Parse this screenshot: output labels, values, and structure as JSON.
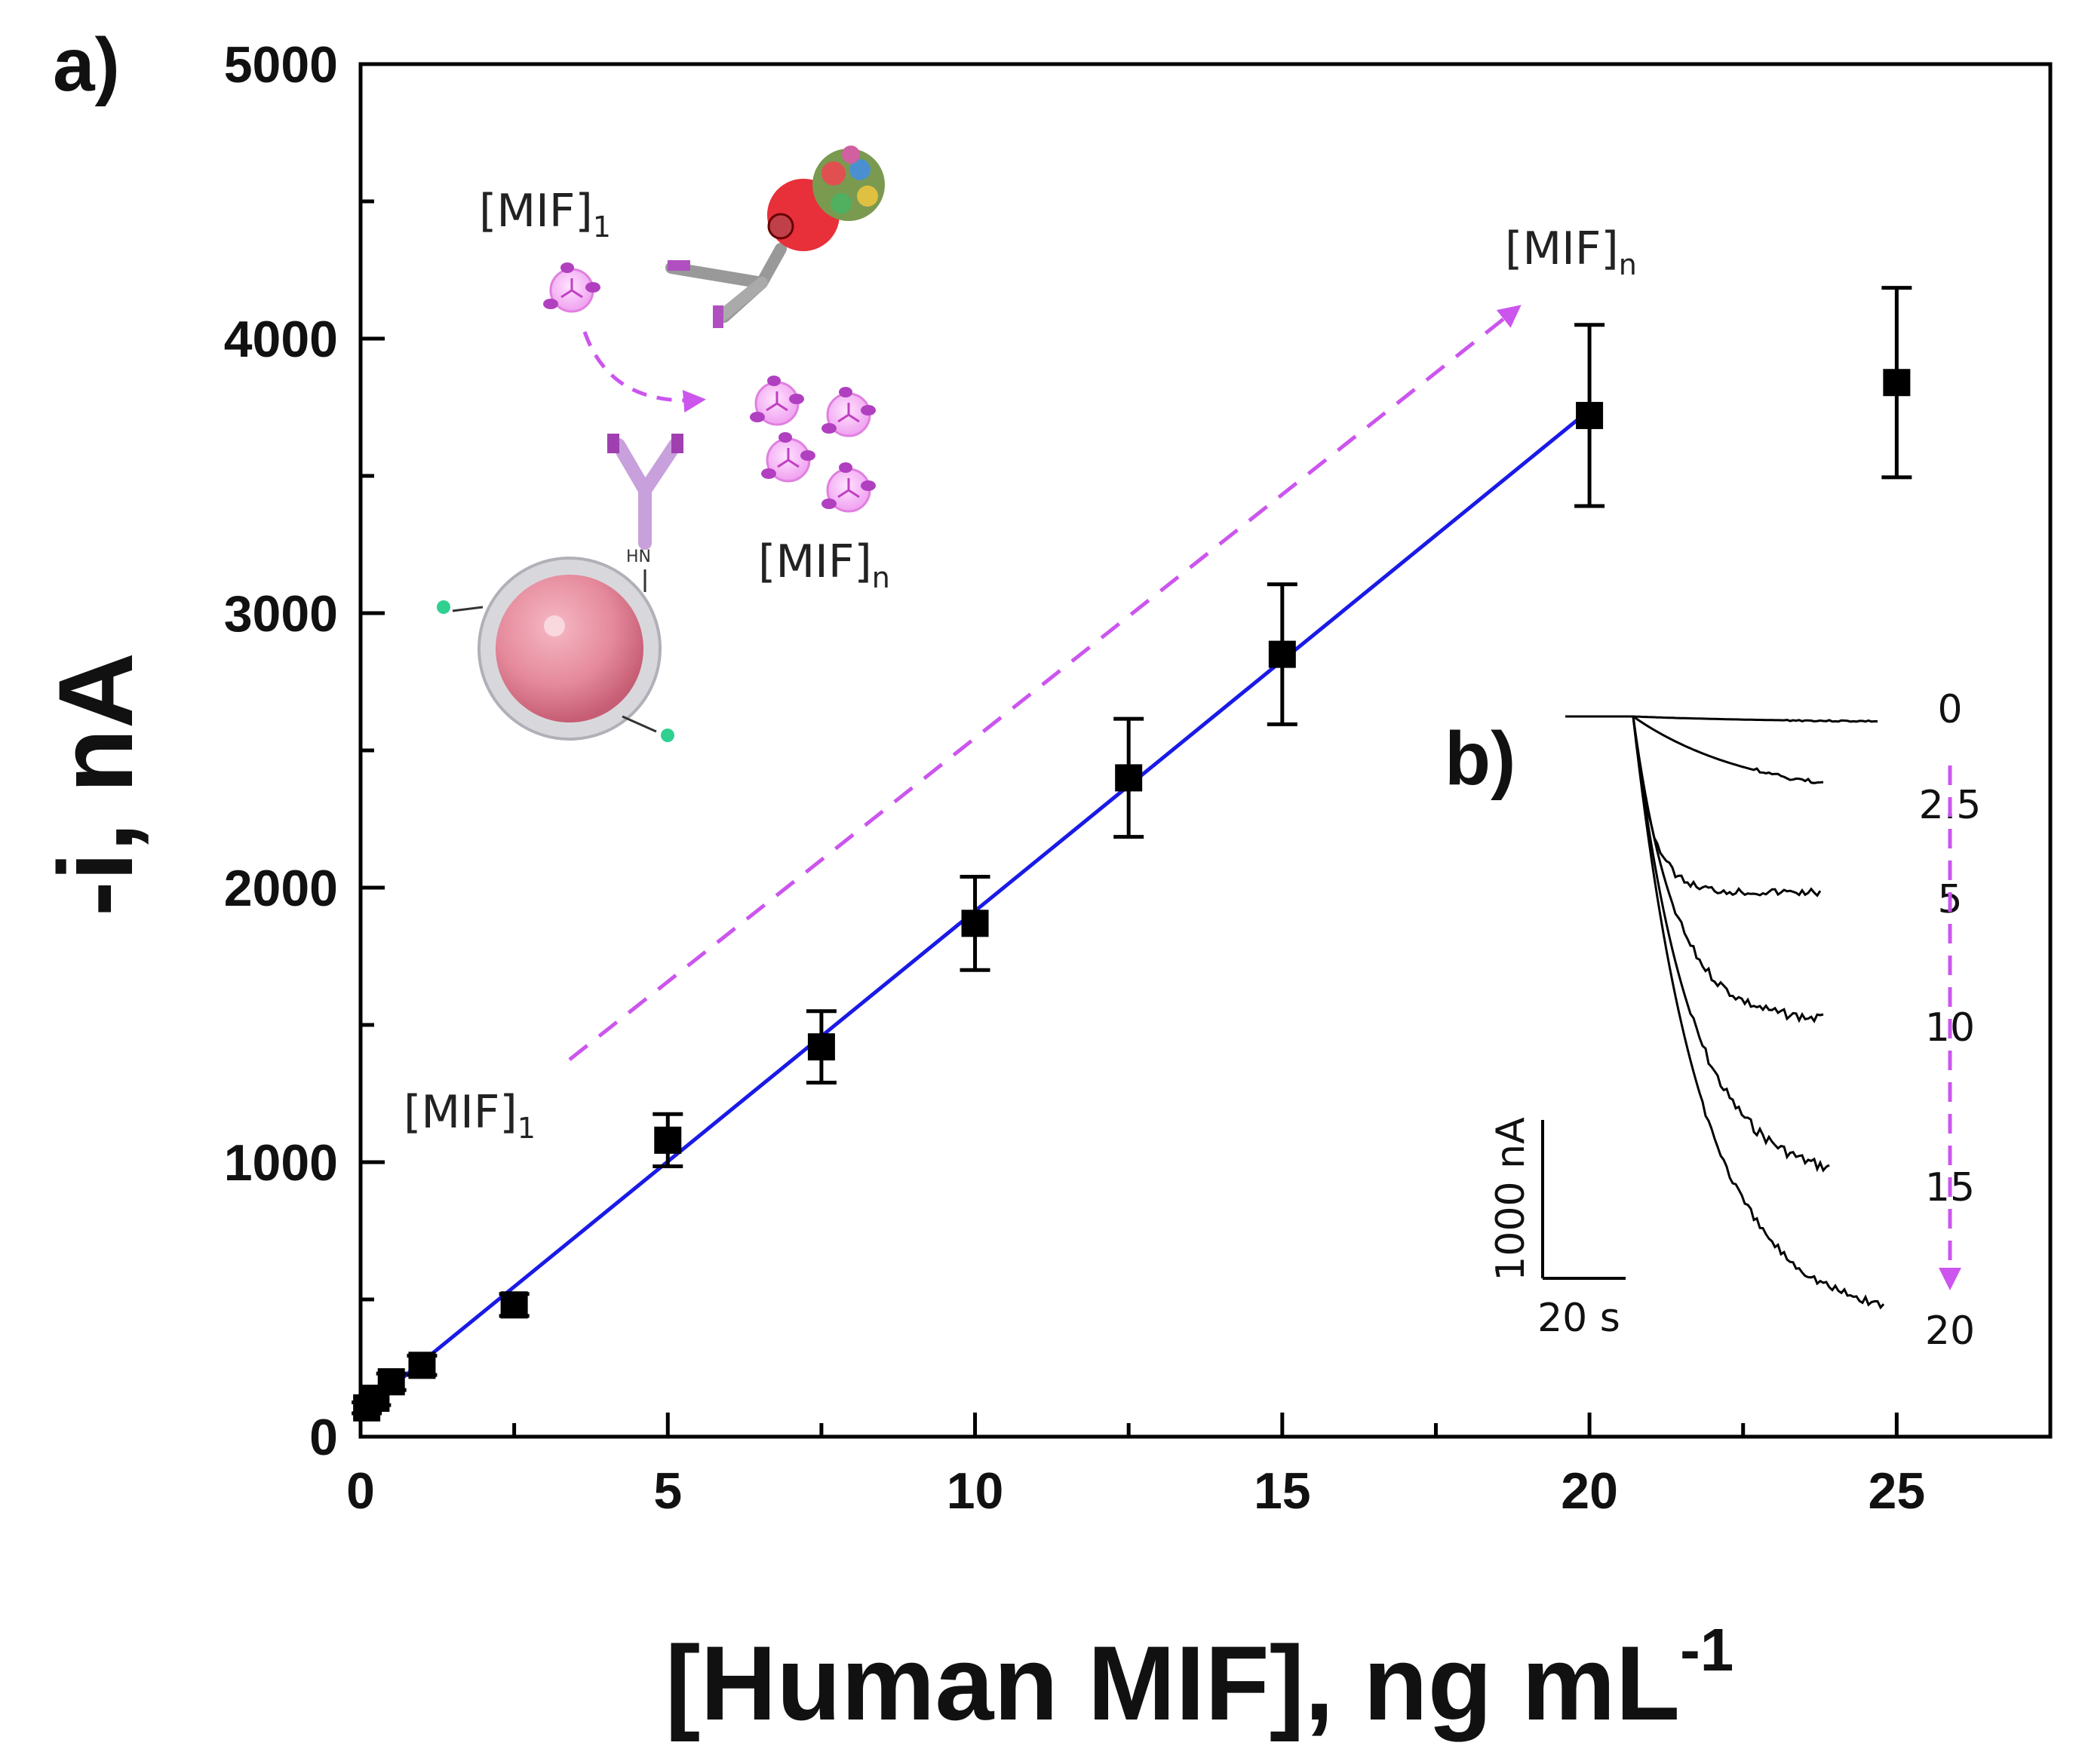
{
  "chart_data": [
    {
      "panel": "a)",
      "type": "scatter",
      "xlabel": "[Human MIF], ng mL",
      "xlabel_sup": "-1",
      "ylabel": "-i, nA",
      "xlim": [
        0,
        27.5
      ],
      "ylim": [
        0,
        5000
      ],
      "x_ticks": [
        0,
        5,
        10,
        15,
        20,
        25
      ],
      "y_ticks": [
        0,
        1000,
        2000,
        3000,
        4000,
        5000
      ],
      "series": [
        {
          "x": [
            0.1,
            0.25,
            0.5,
            1,
            2.5,
            5,
            7.5,
            10,
            12.5,
            15,
            20,
            25
          ],
          "y": [
            105,
            140,
            200,
            260,
            480,
            1080,
            1420,
            1870,
            2400,
            2850,
            3720,
            3840
          ],
          "error": [
            20,
            25,
            30,
            35,
            40,
            95,
            130,
            170,
            215,
            255,
            330,
            345
          ],
          "marker": "square",
          "color": "#000000"
        }
      ],
      "fit": {
        "x": [
          0,
          20
        ],
        "y": [
          90,
          3740
        ],
        "color": "#1a1ae6"
      },
      "annotations": {
        "mif_1_top": "[MIF]",
        "mif_1_left": "[MIF]",
        "mif_n_top": "[MIF]",
        "mif_n_mid": "[MIF]",
        "sub_1": "1",
        "sub_n": "n",
        "arrow_color": "#cc55ee"
      }
    },
    {
      "panel": "b)",
      "type": "line",
      "trace_labels": [
        "0",
        "2.5",
        "5",
        "10",
        "15",
        "20"
      ],
      "scale_y_label": "1000 nA",
      "scale_x_label": "20 s",
      "arrow_color": "#cc55ee"
    }
  ]
}
